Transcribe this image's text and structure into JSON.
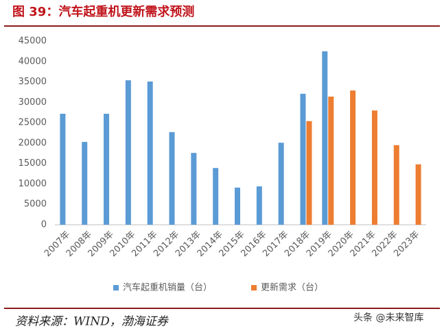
{
  "chart_data": {
    "type": "bar",
    "title": "图 39：汽车起重机更新需求预测",
    "categories": [
      "2007年",
      "2008年",
      "2009年",
      "2010年",
      "2011年",
      "2012年",
      "2013年",
      "2014年",
      "2015年",
      "2016年",
      "2017年",
      "2018年",
      "2019年",
      "2020年",
      "2021年",
      "2022年",
      "2023年"
    ],
    "series": [
      {
        "name": "汽车起重机销量（台）",
        "color": "#5b9bd5",
        "values": [
          27200,
          20300,
          27200,
          35400,
          35100,
          22700,
          17600,
          13900,
          9100,
          9400,
          20100,
          32100,
          42500,
          null,
          null,
          null,
          null
        ]
      },
      {
        "name": "更新需求（台）",
        "color": "#ed7d31",
        "values": [
          null,
          null,
          null,
          null,
          null,
          null,
          null,
          null,
          null,
          null,
          null,
          25400,
          31400,
          32900,
          28000,
          19500,
          14800
        ]
      }
    ],
    "ylim": [
      0,
      45000
    ],
    "yticks": [
      0,
      5000,
      10000,
      15000,
      20000,
      25000,
      30000,
      35000,
      40000,
      45000
    ],
    "legend": "bottom",
    "source": "资料来源：WIND，渤海证券",
    "watermark": "头条 @未来智库"
  }
}
